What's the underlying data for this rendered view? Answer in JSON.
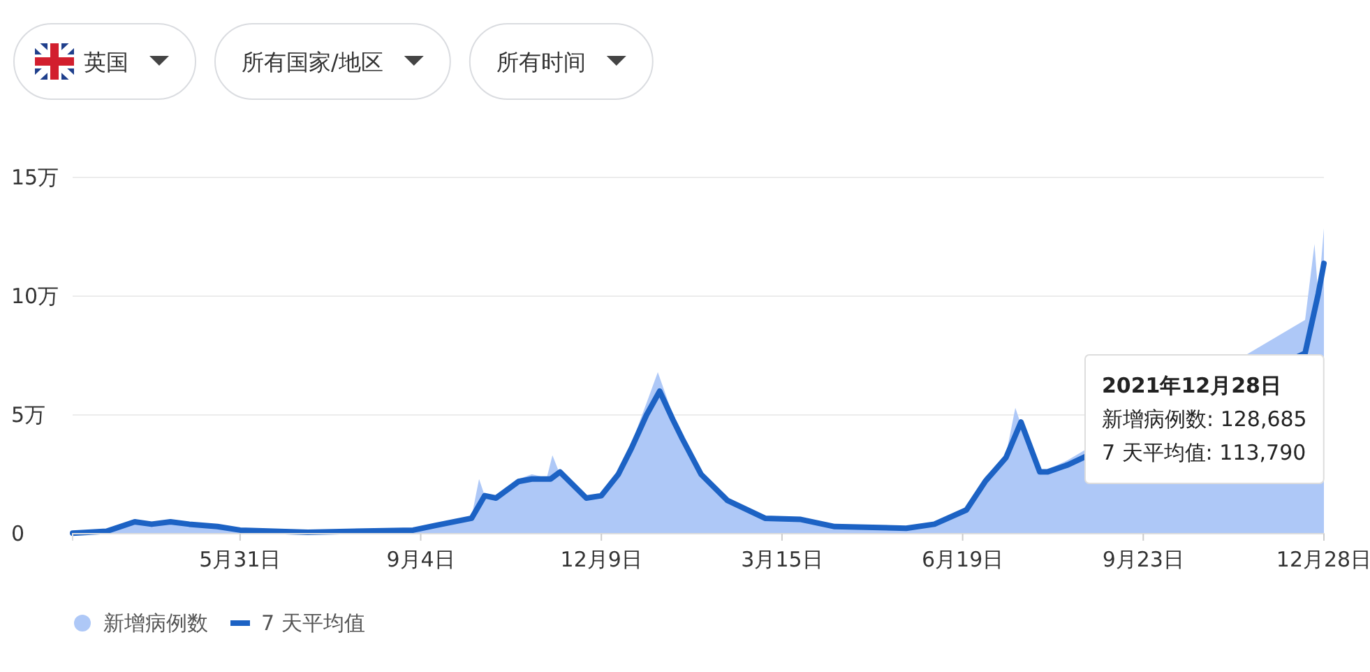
{
  "chart_data": {
    "type": "area",
    "xlim": [
      "2020-03-03",
      "2021-12-28"
    ],
    "xticks": [
      {
        "value": "2020-05-31",
        "label": "5月31日"
      },
      {
        "value": "2020-09-04",
        "label": "9月4日"
      },
      {
        "value": "2020-12-09",
        "label": "12月9日"
      },
      {
        "value": "2021-03-15",
        "label": "3月15日"
      },
      {
        "value": "2021-06-19",
        "label": "6月19日"
      },
      {
        "value": "2021-09-23",
        "label": "9月23日"
      },
      {
        "value": "2021-12-28",
        "label": "12月28日"
      }
    ],
    "ylim": [
      0,
      15
    ],
    "yticks": [
      0,
      {
        "value": 5,
        "label": "5万"
      },
      {
        "value": 10,
        "label": "10万"
      },
      {
        "value": 15,
        "label": "15万"
      }
    ],
    "grid": "y",
    "legend": "bottom left",
    "series": [
      {
        "name": "新增病例数",
        "color": "#aec8f7",
        "x": [
          "2020-03-03",
          "2020-03-21",
          "2020-04-05",
          "2020-04-14",
          "2020-04-24",
          "2020-05-04",
          "2020-05-19",
          "2020-05-31",
          "2020-07-06",
          "2020-08-31",
          "2020-09-12",
          "2020-10-01",
          "2020-10-05",
          "2020-10-08",
          "2020-10-14",
          "2020-10-26",
          "2020-11-02",
          "2020-11-10",
          "2020-11-13",
          "2020-11-17",
          "2020-12-01",
          "2020-12-09",
          "2020-12-18",
          "2020-12-25",
          "2021-01-02",
          "2021-01-08",
          "2021-01-16",
          "2021-01-21",
          "2021-01-31",
          "2021-02-14",
          "2021-03-06",
          "2021-03-25",
          "2021-04-12",
          "2021-05-20",
          "2021-06-04",
          "2021-06-21",
          "2021-07-01",
          "2021-07-12",
          "2021-07-17",
          "2021-07-20",
          "2021-07-30",
          "2021-08-03",
          "2021-08-14",
          "2021-12-18",
          "2021-12-23",
          "2021-12-25",
          "2021-12-28"
        ],
        "values": [
          0.03,
          0.12,
          0.55,
          0.45,
          0.55,
          0.45,
          0.3,
          0.18,
          0.06,
          0.17,
          0.38,
          0.7,
          2.3,
          1.6,
          1.55,
          2.3,
          2.5,
          2.35,
          3.3,
          2.5,
          1.45,
          1.65,
          2.7,
          3.8,
          5.5,
          6.8,
          5.0,
          4.0,
          2.4,
          1.3,
          0.6,
          0.55,
          0.28,
          0.25,
          0.45,
          1.1,
          2.4,
          3.3,
          5.3,
          4.6,
          2.5,
          2.7,
          3.1,
          9.0,
          12.2,
          10.0,
          12.8685
        ]
      },
      {
        "name": "7 天平均值",
        "type": "line",
        "color": "#1c62c4",
        "x": [
          "2020-03-03",
          "2020-03-21",
          "2020-04-05",
          "2020-04-14",
          "2020-04-24",
          "2020-05-04",
          "2020-05-19",
          "2020-05-31",
          "2020-07-06",
          "2020-08-31",
          "2020-09-12",
          "2020-10-01",
          "2020-10-08",
          "2020-10-14",
          "2020-10-26",
          "2020-11-02",
          "2020-11-12",
          "2020-11-17",
          "2020-12-01",
          "2020-12-09",
          "2020-12-18",
          "2020-12-25",
          "2021-01-02",
          "2021-01-09",
          "2021-01-16",
          "2021-01-21",
          "2021-01-31",
          "2021-02-14",
          "2021-03-06",
          "2021-03-25",
          "2021-04-12",
          "2021-05-20",
          "2021-06-04",
          "2021-06-21",
          "2021-07-01",
          "2021-07-12",
          "2021-07-20",
          "2021-07-30",
          "2021-08-03",
          "2021-08-14",
          "2021-12-18",
          "2021-12-25",
          "2021-12-28"
        ],
        "values": [
          0.02,
          0.1,
          0.5,
          0.4,
          0.5,
          0.4,
          0.3,
          0.15,
          0.06,
          0.15,
          0.35,
          0.65,
          1.6,
          1.5,
          2.2,
          2.3,
          2.3,
          2.6,
          1.5,
          1.6,
          2.5,
          3.6,
          5.0,
          6.0,
          4.8,
          4.0,
          2.5,
          1.4,
          0.65,
          0.6,
          0.3,
          0.23,
          0.4,
          1.0,
          2.2,
          3.2,
          4.7,
          2.6,
          2.6,
          2.9,
          7.6,
          10.1,
          11.379
        ]
      }
    ],
    "annotations": [
      "英国",
      "所有国家/地区",
      "所有时间",
      "2021年12月28日",
      "新增病例数: 128,685",
      "7 天平均值: 113,790"
    ]
  }
}
